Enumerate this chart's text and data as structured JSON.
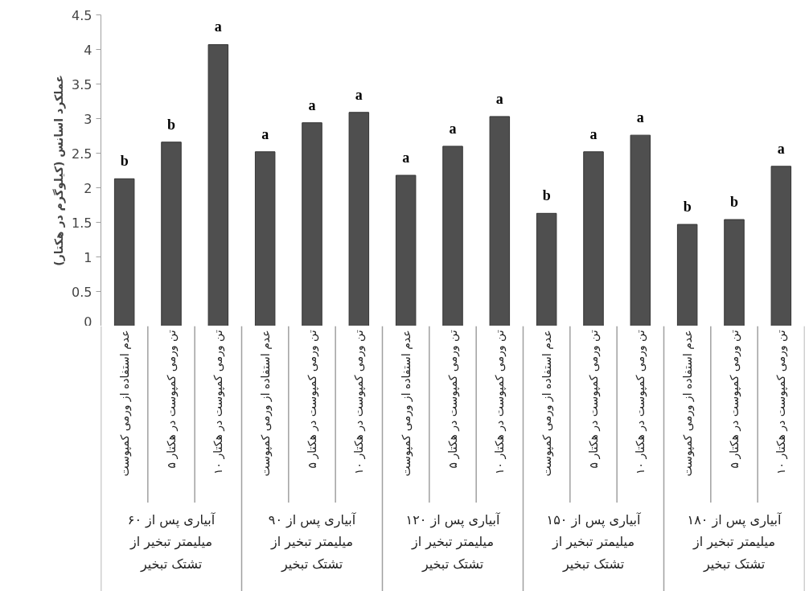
{
  "chart_data": {
    "type": "bar",
    "ylabel": "عملکرد اسانس (کیلوگرم در هکتار)",
    "categories": [
      "عدم استفاده از ورمی کمپوست",
      "۵ تن ورمی کمپوست در هکتار",
      "۱۰ تن ورمی کمپوست در هکتار",
      "عدم استفاده از ورمی کمپوست",
      "۵ تن ورمی کمپوست در هکتار",
      "۱۰ تن ورمی کمپوست در هکتار",
      "عدم استفاده از ورمی کمپوست",
      "۵ تن ورمی کمپوست در هکتار",
      "۱۰ تن ورمی کمپوست در هکتار",
      "عدم استفاده از ورمی کمپوست",
      "۵ تن ورمی کمپوست در هکتار",
      "۱۰ تن ورمی کمپوست در هکتار",
      "عدم استفاده از ورمی کمپوست",
      "۵ تن ورمی کمپوست در هکتار",
      "۱۰ تن ورمی کمپوست در هکتار"
    ],
    "values": [
      2.13,
      2.66,
      4.07,
      2.52,
      2.94,
      3.09,
      2.18,
      2.6,
      3.03,
      1.63,
      2.52,
      2.76,
      1.47,
      1.54,
      2.31
    ],
    "value_labels": [
      "b",
      "b",
      "a",
      "a",
      "a",
      "a",
      "a",
      "a",
      "a",
      "b",
      "a",
      "a",
      "b",
      "b",
      "a"
    ],
    "color": "#4f4f4f",
    "ylim": [
      0,
      4.5
    ],
    "yticks": [
      0,
      0.5,
      1,
      1.5,
      2,
      2.5,
      3,
      3.5,
      4,
      4.5
    ],
    "annotations": [
      "آبیاری پس از ۶۰\nمیلیمتر تبخیر از\nتشتک تبخیر",
      "آبیاری پس از ۹۰\nمیلیمتر تبخیر از\nتشتک تبخیر",
      "آبیاری پس از ۱۲۰\nمیلیمتر تبخیر از\nتشتک تبخیر",
      "آبیاری پس از ۱۵۰\nمیلیمتر تبخیر از\nتشتک تبخیر",
      "آبیاری پس از ۱۸۰\nمیلیمتر تبخیر از\nتشتک تبخیر"
    ]
  }
}
